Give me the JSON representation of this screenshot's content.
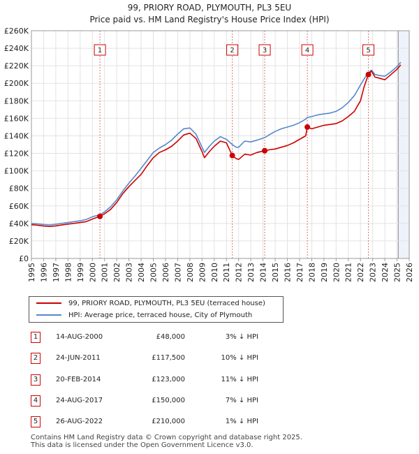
{
  "chart_data": {
    "type": "line",
    "title": "99, PRIORY ROAD, PLYMOUTH, PL3 5EU",
    "subtitle": "Price paid vs. HM Land Registry's House Price Index (HPI)",
    "x_range": [
      1995,
      2026
    ],
    "ylim": [
      0,
      260000
    ],
    "x_ticks": [
      "1995",
      "1996",
      "1997",
      "1998",
      "1999",
      "2000",
      "2001",
      "2002",
      "2003",
      "2004",
      "2005",
      "2006",
      "2007",
      "2008",
      "2009",
      "2010",
      "2011",
      "2012",
      "2013",
      "2014",
      "2015",
      "2016",
      "2017",
      "2018",
      "2019",
      "2020",
      "2021",
      "2022",
      "2023",
      "2024",
      "2025",
      "2026"
    ],
    "y_ticks": [
      {
        "value": 0,
        "label": "£0"
      },
      {
        "value": 20000,
        "label": "£20K"
      },
      {
        "value": 40000,
        "label": "£40K"
      },
      {
        "value": 60000,
        "label": "£60K"
      },
      {
        "value": 80000,
        "label": "£80K"
      },
      {
        "value": 100000,
        "label": "£100K"
      },
      {
        "value": 120000,
        "label": "£120K"
      },
      {
        "value": 140000,
        "label": "£140K"
      },
      {
        "value": 160000,
        "label": "£160K"
      },
      {
        "value": 180000,
        "label": "£180K"
      },
      {
        "value": 200000,
        "label": "£200K"
      },
      {
        "value": 220000,
        "label": "£220K"
      },
      {
        "value": 240000,
        "label": "£240K"
      },
      {
        "value": 260000,
        "label": "£260K"
      }
    ],
    "grid": true,
    "shaded_future_from": 2025.1,
    "series": [
      {
        "name": "99, PRIORY ROAD, PLYMOUTH, PL3 5EU (terraced house)",
        "color": "#cc0000",
        "points": [
          [
            1995.0,
            38500
          ],
          [
            1995.5,
            38000
          ],
          [
            1996.0,
            37000
          ],
          [
            1996.5,
            36500
          ],
          [
            1997.0,
            37200
          ],
          [
            1997.5,
            38200
          ],
          [
            1998.0,
            39200
          ],
          [
            1998.5,
            40000
          ],
          [
            1999.0,
            41000
          ],
          [
            1999.5,
            42000
          ],
          [
            2000.0,
            45000
          ],
          [
            2000.62,
            48000
          ],
          [
            2001.0,
            51000
          ],
          [
            2001.5,
            56000
          ],
          [
            2002.0,
            64000
          ],
          [
            2002.5,
            74000
          ],
          [
            2003.0,
            82000
          ],
          [
            2003.5,
            89000
          ],
          [
            2004.0,
            96000
          ],
          [
            2004.5,
            106000
          ],
          [
            2005.0,
            115000
          ],
          [
            2005.5,
            121000
          ],
          [
            2006.0,
            124000
          ],
          [
            2006.5,
            128000
          ],
          [
            2007.0,
            134000
          ],
          [
            2007.5,
            141000
          ],
          [
            2008.0,
            143000
          ],
          [
            2008.5,
            137000
          ],
          [
            2009.0,
            122000
          ],
          [
            2009.2,
            115000
          ],
          [
            2009.6,
            122000
          ],
          [
            2010.0,
            128000
          ],
          [
            2010.5,
            134000
          ],
          [
            2011.0,
            132000
          ],
          [
            2011.48,
            117500
          ],
          [
            2011.8,
            114000
          ],
          [
            2012.0,
            113000
          ],
          [
            2012.5,
            119000
          ],
          [
            2013.0,
            118000
          ],
          [
            2013.5,
            121000
          ],
          [
            2014.14,
            123000
          ],
          [
            2014.5,
            124000
          ],
          [
            2015.0,
            125000
          ],
          [
            2015.5,
            127000
          ],
          [
            2016.0,
            129000
          ],
          [
            2016.5,
            132000
          ],
          [
            2017.0,
            136000
          ],
          [
            2017.5,
            140000
          ],
          [
            2017.64,
            150000
          ],
          [
            2018.0,
            148000
          ],
          [
            2018.5,
            150000
          ],
          [
            2019.0,
            152000
          ],
          [
            2019.5,
            153000
          ],
          [
            2020.0,
            154000
          ],
          [
            2020.5,
            157000
          ],
          [
            2021.0,
            162000
          ],
          [
            2021.5,
            168000
          ],
          [
            2022.0,
            180000
          ],
          [
            2022.3,
            196000
          ],
          [
            2022.65,
            210000
          ],
          [
            2022.9,
            214000
          ],
          [
            2023.2,
            207000
          ],
          [
            2023.5,
            206000
          ],
          [
            2024.0,
            204000
          ],
          [
            2024.5,
            210000
          ],
          [
            2025.0,
            216000
          ],
          [
            2025.3,
            221000
          ]
        ]
      },
      {
        "name": "HPI: Average price, terraced house, City of Plymouth",
        "color": "#5588cc",
        "points": [
          [
            1995.0,
            40000
          ],
          [
            1995.5,
            39500
          ],
          [
            1996.0,
            38800
          ],
          [
            1996.5,
            38300
          ],
          [
            1997.0,
            39000
          ],
          [
            1997.5,
            40000
          ],
          [
            1998.0,
            41000
          ],
          [
            1998.5,
            42000
          ],
          [
            1999.0,
            43000
          ],
          [
            1999.5,
            44500
          ],
          [
            2000.0,
            47500
          ],
          [
            2000.62,
            50000
          ],
          [
            2001.0,
            53000
          ],
          [
            2001.5,
            59000
          ],
          [
            2002.0,
            67000
          ],
          [
            2002.5,
            77000
          ],
          [
            2003.0,
            86000
          ],
          [
            2003.5,
            94000
          ],
          [
            2004.0,
            103000
          ],
          [
            2004.5,
            112000
          ],
          [
            2005.0,
            121000
          ],
          [
            2005.5,
            126000
          ],
          [
            2006.0,
            130000
          ],
          [
            2006.5,
            135000
          ],
          [
            2007.0,
            142000
          ],
          [
            2007.5,
            148000
          ],
          [
            2008.0,
            149000
          ],
          [
            2008.5,
            142000
          ],
          [
            2009.0,
            127000
          ],
          [
            2009.2,
            121000
          ],
          [
            2009.6,
            128000
          ],
          [
            2010.0,
            134000
          ],
          [
            2010.5,
            139000
          ],
          [
            2011.0,
            136000
          ],
          [
            2011.48,
            130000
          ],
          [
            2011.8,
            127000
          ],
          [
            2012.0,
            127000
          ],
          [
            2012.5,
            134000
          ],
          [
            2013.0,
            133000
          ],
          [
            2013.5,
            135000
          ],
          [
            2014.14,
            138000
          ],
          [
            2014.5,
            141000
          ],
          [
            2015.0,
            145000
          ],
          [
            2015.5,
            148000
          ],
          [
            2016.0,
            150000
          ],
          [
            2016.5,
            152000
          ],
          [
            2017.0,
            155000
          ],
          [
            2017.5,
            159000
          ],
          [
            2017.64,
            161000
          ],
          [
            2018.0,
            162000
          ],
          [
            2018.5,
            164000
          ],
          [
            2019.0,
            165000
          ],
          [
            2019.5,
            166000
          ],
          [
            2020.0,
            168000
          ],
          [
            2020.5,
            172000
          ],
          [
            2021.0,
            178000
          ],
          [
            2021.5,
            186000
          ],
          [
            2022.0,
            198000
          ],
          [
            2022.3,
            205000
          ],
          [
            2022.65,
            212000
          ],
          [
            2022.9,
            215000
          ],
          [
            2023.2,
            210000
          ],
          [
            2023.5,
            209000
          ],
          [
            2024.0,
            208000
          ],
          [
            2024.5,
            213000
          ],
          [
            2025.0,
            219000
          ],
          [
            2025.3,
            224000
          ]
        ]
      }
    ],
    "markers": [
      {
        "label": "1",
        "x": 2000.62,
        "value": 48000
      },
      {
        "label": "2",
        "x": 2011.48,
        "value": 117500
      },
      {
        "label": "3",
        "x": 2014.14,
        "value": 123000
      },
      {
        "label": "4",
        "x": 2017.64,
        "value": 150000
      },
      {
        "label": "5",
        "x": 2022.65,
        "value": 210000
      }
    ]
  },
  "legend": {
    "property": "99, PRIORY ROAD, PLYMOUTH, PL3 5EU (terraced house)",
    "hpi": "HPI: Average price, terraced house, City of Plymouth"
  },
  "transactions": [
    {
      "n": "1",
      "date": "14-AUG-2000",
      "price": "£48,000",
      "hpi": "3% ↓ HPI"
    },
    {
      "n": "2",
      "date": "24-JUN-2011",
      "price": "£117,500",
      "hpi": "10% ↓ HPI"
    },
    {
      "n": "3",
      "date": "20-FEB-2014",
      "price": "£123,000",
      "hpi": "11% ↓ HPI"
    },
    {
      "n": "4",
      "date": "24-AUG-2017",
      "price": "£150,000",
      "hpi": "7% ↓ HPI"
    },
    {
      "n": "5",
      "date": "26-AUG-2022",
      "price": "£210,000",
      "hpi": "1% ↓ HPI"
    }
  ],
  "footer": {
    "line1": "Contains HM Land Registry data © Crown copyright and database right 2025.",
    "line2": "This data is licensed under the Open Government Licence v3.0."
  },
  "colors": {
    "property": "#cc0000",
    "hpi": "#5588cc",
    "shade": "#eef2fa",
    "grid": "#e2e2e2"
  }
}
